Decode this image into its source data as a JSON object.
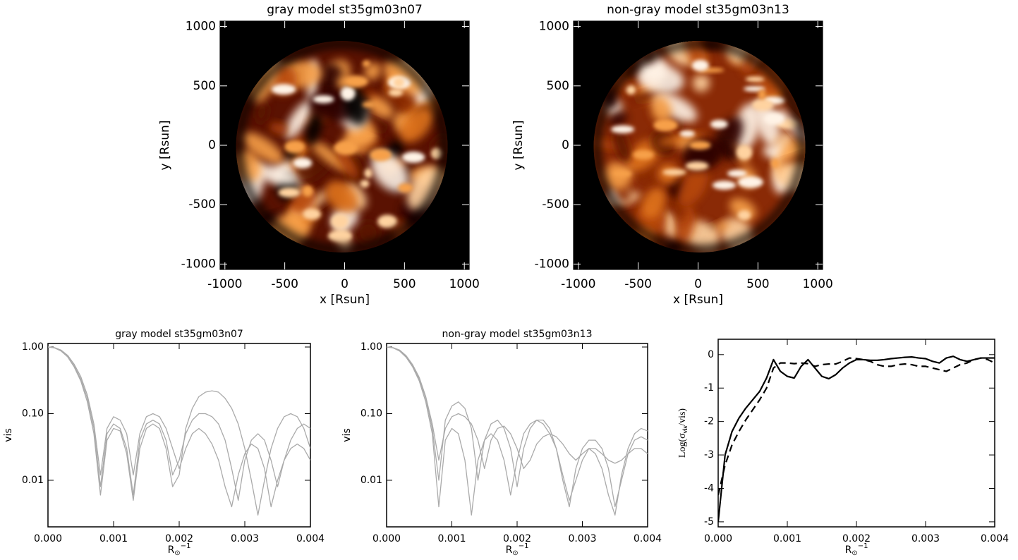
{
  "chart_data": [
    {
      "type": "image",
      "title": "gray model st35gm03n07",
      "x_label": "x [Rsun]",
      "y_label": "y [Rsun]",
      "xlim": [
        -1040,
        1040
      ],
      "ylim": [
        -1045,
        1045
      ],
      "xticks": [
        -1000,
        -500,
        0,
        500,
        1000
      ],
      "yticks": [
        -1000,
        -500,
        0,
        500,
        1000
      ]
    },
    {
      "type": "image",
      "title": "non-gray model st35gm03n13",
      "x_label": "x [Rsun]",
      "y_label": "y [Rsun]",
      "xlim": [
        -1040,
        1040
      ],
      "ylim": [
        -1045,
        1045
      ],
      "xticks": [
        -1000,
        -500,
        0,
        500,
        1000
      ],
      "yticks": [
        -1000,
        -500,
        0,
        500,
        1000
      ]
    },
    {
      "type": "line",
      "title": "gray model st35gm03n07",
      "x_label": {
        "base": "R",
        "sub": "⊙",
        "sup": "−1"
      },
      "y_label": "vis",
      "log_y": true,
      "x": [
        0,
        0.0001,
        0.0002,
        0.0003,
        0.0004,
        0.0005,
        0.0006,
        0.0007,
        0.0008,
        0.0009,
        0.001,
        0.0011,
        0.0012,
        0.0013,
        0.0014,
        0.0015,
        0.0016,
        0.0017,
        0.0018,
        0.0019,
        0.002,
        0.0021,
        0.0022,
        0.0023,
        0.0024,
        0.0025,
        0.0026,
        0.0027,
        0.0028,
        0.0029,
        0.003,
        0.0031,
        0.0032,
        0.0033,
        0.0034,
        0.0035,
        0.0036,
        0.0037,
        0.0038,
        0.0039,
        0.004
      ],
      "series": [
        {
          "color": "#aaaaaa",
          "values": [
            1.0,
            0.97,
            0.88,
            0.72,
            0.52,
            0.33,
            0.17,
            0.06,
            0.008,
            0.05,
            0.07,
            0.06,
            0.03,
            0.006,
            0.04,
            0.07,
            0.08,
            0.07,
            0.04,
            0.012,
            0.02,
            0.05,
            0.08,
            0.1,
            0.1,
            0.09,
            0.07,
            0.04,
            0.015,
            0.005,
            0.02,
            0.04,
            0.05,
            0.04,
            0.02,
            0.008,
            0.02,
            0.04,
            0.06,
            0.07,
            0.06
          ]
        },
        {
          "color": "#aaaaaa",
          "values": [
            1.0,
            0.97,
            0.87,
            0.71,
            0.5,
            0.31,
            0.15,
            0.05,
            0.006,
            0.04,
            0.06,
            0.055,
            0.025,
            0.005,
            0.03,
            0.06,
            0.07,
            0.06,
            0.03,
            0.008,
            0.012,
            0.06,
            0.12,
            0.18,
            0.21,
            0.22,
            0.21,
            0.17,
            0.12,
            0.07,
            0.03,
            0.01,
            0.003,
            0.01,
            0.03,
            0.06,
            0.09,
            0.1,
            0.09,
            0.06,
            0.03
          ]
        },
        {
          "color": "#aaaaaa",
          "values": [
            1.0,
            0.98,
            0.9,
            0.75,
            0.55,
            0.36,
            0.19,
            0.07,
            0.012,
            0.06,
            0.09,
            0.08,
            0.05,
            0.012,
            0.05,
            0.09,
            0.1,
            0.09,
            0.06,
            0.03,
            0.015,
            0.03,
            0.05,
            0.06,
            0.05,
            0.035,
            0.02,
            0.008,
            0.004,
            0.012,
            0.025,
            0.035,
            0.03,
            0.015,
            0.004,
            0.01,
            0.02,
            0.03,
            0.035,
            0.03,
            0.02
          ]
        }
      ],
      "xlim": [
        0,
        0.004
      ],
      "ylim": [
        0.002,
        1.13
      ],
      "xticks": [
        {
          "value": 0,
          "label": "0.000"
        },
        {
          "value": 0.001,
          "label": "0.001"
        },
        {
          "value": 0.002,
          "label": "0.002"
        },
        {
          "value": 0.003,
          "label": "0.003"
        },
        {
          "value": 0.004,
          "label": "0.004"
        }
      ],
      "yticks": [
        {
          "value": 0.01,
          "label": "0.01"
        },
        {
          "value": 0.1,
          "label": "0.10"
        },
        {
          "value": 1,
          "label": "1.00"
        }
      ]
    },
    {
      "type": "line",
      "title": "non-gray model st35gm03n13",
      "x_label": {
        "base": "R",
        "sub": "⊙",
        "sup": "−1"
      },
      "y_label": "vis",
      "log_y": true,
      "x": [
        0,
        0.0001,
        0.0002,
        0.0003,
        0.0004,
        0.0005,
        0.0006,
        0.0007,
        0.0008,
        0.0009,
        0.001,
        0.0011,
        0.0012,
        0.0013,
        0.0014,
        0.0015,
        0.0016,
        0.0017,
        0.0018,
        0.0019,
        0.002,
        0.0021,
        0.0022,
        0.0023,
        0.0024,
        0.0025,
        0.0026,
        0.0027,
        0.0028,
        0.0029,
        0.003,
        0.0031,
        0.0032,
        0.0033,
        0.0034,
        0.0035,
        0.0036,
        0.0037,
        0.0038,
        0.0039,
        0.004
      ],
      "series": [
        {
          "color": "#aaaaaa",
          "values": [
            1.0,
            0.97,
            0.88,
            0.72,
            0.52,
            0.33,
            0.17,
            0.06,
            0.01,
            0.08,
            0.13,
            0.15,
            0.12,
            0.06,
            0.01,
            0.04,
            0.07,
            0.08,
            0.06,
            0.03,
            0.008,
            0.03,
            0.06,
            0.08,
            0.08,
            0.06,
            0.03,
            0.01,
            0.004,
            0.015,
            0.03,
            0.04,
            0.04,
            0.03,
            0.015,
            0.004,
            0.01,
            0.025,
            0.04,
            0.045,
            0.04
          ]
        },
        {
          "color": "#aaaaaa",
          "values": [
            1.0,
            0.97,
            0.87,
            0.7,
            0.5,
            0.31,
            0.15,
            0.05,
            0.004,
            0.04,
            0.06,
            0.05,
            0.02,
            0.003,
            0.02,
            0.04,
            0.05,
            0.04,
            0.02,
            0.006,
            0.02,
            0.05,
            0.07,
            0.08,
            0.07,
            0.05,
            0.03,
            0.012,
            0.005,
            0.01,
            0.02,
            0.03,
            0.025,
            0.015,
            0.006,
            0.003,
            0.012,
            0.03,
            0.05,
            0.06,
            0.055
          ]
        },
        {
          "color": "#aaaaaa",
          "values": [
            1.0,
            0.98,
            0.9,
            0.74,
            0.54,
            0.35,
            0.18,
            0.07,
            0.02,
            0.06,
            0.09,
            0.1,
            0.09,
            0.07,
            0.04,
            0.015,
            0.04,
            0.06,
            0.065,
            0.05,
            0.03,
            0.015,
            0.02,
            0.035,
            0.045,
            0.05,
            0.045,
            0.035,
            0.025,
            0.02,
            0.025,
            0.03,
            0.03,
            0.025,
            0.02,
            0.018,
            0.02,
            0.025,
            0.03,
            0.03,
            0.025
          ]
        }
      ],
      "xlim": [
        0,
        0.004
      ],
      "ylim": [
        0.002,
        1.13
      ],
      "xticks": [
        {
          "value": 0,
          "label": "0.000"
        },
        {
          "value": 0.001,
          "label": "0.001"
        },
        {
          "value": 0.002,
          "label": "0.002"
        },
        {
          "value": 0.003,
          "label": "0.003"
        },
        {
          "value": 0.004,
          "label": "0.004"
        }
      ],
      "yticks": [
        {
          "value": 0.01,
          "label": "0.01"
        },
        {
          "value": 0.1,
          "label": "0.10"
        },
        {
          "value": 1,
          "label": "1.00"
        }
      ]
    },
    {
      "type": "line",
      "x_label": {
        "base": "R",
        "sub": "⊙",
        "sup": "−1"
      },
      "y_label": {
        "base": "Log(σ",
        "sub": "vis",
        "rest": "/vis)"
      },
      "log_y": false,
      "x": [
        0,
        0.0001,
        0.0002,
        0.0003,
        0.0004,
        0.0005,
        0.0006,
        0.0007,
        0.0008,
        0.0009,
        0.001,
        0.0011,
        0.0012,
        0.0013,
        0.0014,
        0.0015,
        0.0016,
        0.0017,
        0.0018,
        0.0019,
        0.002,
        0.0021,
        0.0022,
        0.0023,
        0.0024,
        0.0025,
        0.0026,
        0.0027,
        0.0028,
        0.0029,
        0.003,
        0.0031,
        0.0032,
        0.0033,
        0.0034,
        0.0035,
        0.0036,
        0.0037,
        0.0038,
        0.0039,
        0.004
      ],
      "series": [
        {
          "color": "#000000",
          "dash": false,
          "values": [
            -5,
            -3,
            -2.3,
            -1.9,
            -1.6,
            -1.35,
            -1.1,
            -0.7,
            -0.15,
            -0.5,
            -0.65,
            -0.7,
            -0.35,
            -0.15,
            -0.4,
            -0.65,
            -0.72,
            -0.6,
            -0.4,
            -0.25,
            -0.15,
            -0.15,
            -0.17,
            -0.17,
            -0.15,
            -0.12,
            -0.1,
            -0.08,
            -0.07,
            -0.1,
            -0.12,
            -0.2,
            -0.25,
            -0.1,
            -0.05,
            -0.15,
            -0.2,
            -0.15,
            -0.1,
            -0.1,
            -0.1
          ]
        },
        {
          "color": "#000000",
          "dash": true,
          "values": [
            -4.2,
            -3.3,
            -2.7,
            -2.3,
            -1.95,
            -1.65,
            -1.35,
            -1.0,
            -0.4,
            -0.25,
            -0.25,
            -0.27,
            -0.25,
            -0.27,
            -0.35,
            -0.3,
            -0.28,
            -0.28,
            -0.2,
            -0.1,
            -0.12,
            -0.15,
            -0.2,
            -0.3,
            -0.35,
            -0.35,
            -0.3,
            -0.28,
            -0.3,
            -0.35,
            -0.35,
            -0.4,
            -0.45,
            -0.5,
            -0.4,
            -0.3,
            -0.25,
            -0.15,
            -0.1,
            -0.15,
            -0.25
          ]
        }
      ],
      "xlim": [
        0,
        0.004
      ],
      "ylim": [
        -5.15,
        0.46
      ],
      "xticks": [
        {
          "value": 0,
          "label": "0.000"
        },
        {
          "value": 0.001,
          "label": "0.001"
        },
        {
          "value": 0.002,
          "label": "0.002"
        },
        {
          "value": 0.003,
          "label": "0.003"
        },
        {
          "value": 0.004,
          "label": "0.004"
        }
      ],
      "yticks": [
        -5,
        -4,
        -3,
        -2,
        -1,
        0
      ]
    }
  ]
}
